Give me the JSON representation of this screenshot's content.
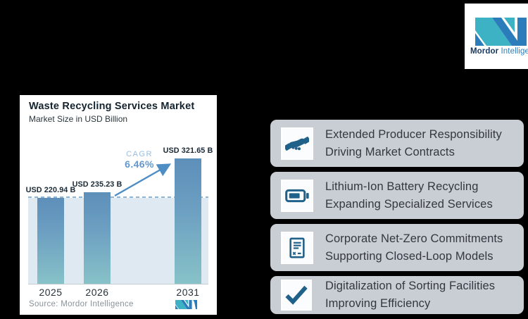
{
  "brand": {
    "name_primary": "Mordor",
    "name_secondary": "Intelligence"
  },
  "chart_card": {
    "title": "Waste Recycling Services Market",
    "subtitle": "Market Size in USD Billion",
    "cagr_label": "CAGR",
    "cagr_value": "6.46%",
    "source": "Source: Mordor Intelligence"
  },
  "chart_data": {
    "type": "bar",
    "title": "Waste Recycling Services Market",
    "subtitle": "Market Size in USD Billion",
    "unit": "USD Billion",
    "categories": [
      "2025",
      "2026",
      "2031"
    ],
    "values": [
      220.94,
      235.23,
      321.65
    ],
    "bar_labels": [
      "USD 220.94 B",
      "USD 235.23 B",
      "USD 321.65 B"
    ],
    "cagr": "6.46%",
    "reference_line_value": 220.94,
    "grid": false,
    "legend": false,
    "colors": {
      "bar_gradient_top": "#5d8fba",
      "bar_gradient_bottom": "#87c2c8",
      "reference_band": "#dfe9f1",
      "reference_dash": "#8cb5d8",
      "arrow": "#4f8dc5",
      "cagr_text": "#6497cd"
    }
  },
  "highlights": [
    {
      "icon": "handshake-icon",
      "line1": "Extended Producer Responsibility",
      "line2": "Driving Market Contracts"
    },
    {
      "icon": "battery-icon",
      "line1": "Lithium-Ion Battery Recycling",
      "line2": "Expanding Specialized Services"
    },
    {
      "icon": "document-icon",
      "line1": "Corporate Net-Zero Commitments",
      "line2": "Supporting Closed-Loop Models"
    },
    {
      "icon": "check-icon",
      "line1": "Digitalization of Sorting Facilities",
      "line2": "Improving Efficiency"
    }
  ],
  "colors": {
    "background": "#000000",
    "card_background": "#ffffff",
    "highlight_background": "#c9cdd4",
    "icon_blue": "#20618a",
    "brand_teal": "#3db2c4",
    "brand_blue": "#2a7cba"
  }
}
